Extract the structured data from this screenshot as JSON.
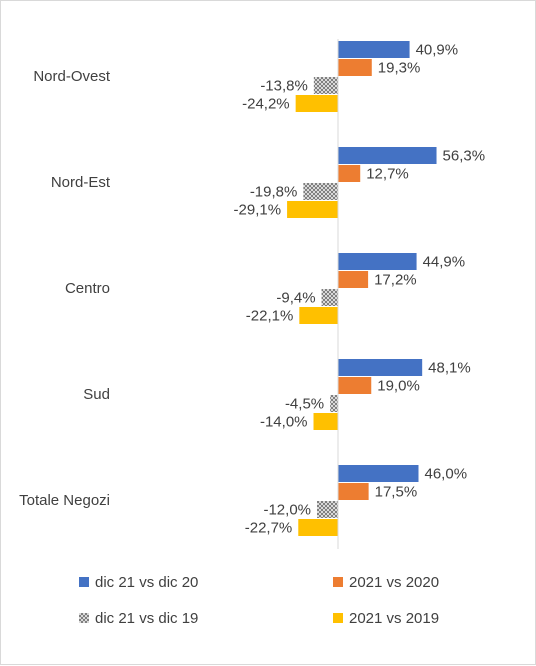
{
  "chart_data": {
    "type": "bar",
    "orientation": "horizontal",
    "title": "",
    "xlabel": "",
    "ylabel": "",
    "categories": [
      "Nord-Ovest",
      "Nord-Est",
      "Centro",
      "Sud",
      "Totale Negozi"
    ],
    "series": [
      {
        "name": "dic 21 vs dic 20",
        "values": [
          40.9,
          56.3,
          44.9,
          48.1,
          46.0
        ],
        "labels": [
          "40,9%",
          "56,3%",
          "44,9%",
          "48,1%",
          "46,0%"
        ],
        "color": "#4472C4",
        "pattern": "solid"
      },
      {
        "name": "2021 vs 2020",
        "values": [
          19.3,
          12.7,
          17.2,
          19.0,
          17.5
        ],
        "labels": [
          "19,3%",
          "12,7%",
          "17,2%",
          "19,0%",
          "17,5%"
        ],
        "color": "#ED7D31",
        "pattern": "solid"
      },
      {
        "name": "dic 21 vs dic 19",
        "values": [
          -13.8,
          -19.8,
          -9.4,
          -4.5,
          -12.0
        ],
        "labels": [
          "-13,8%",
          "-19,8%",
          "-9,4%",
          "-4,5%",
          "-12,0%"
        ],
        "color": "#A5A5A5",
        "pattern": "checker"
      },
      {
        "name": "2021 vs 2019",
        "values": [
          -24.2,
          -29.1,
          -22.1,
          -14.0,
          -22.7
        ],
        "labels": [
          "-24,2%",
          "-29,1%",
          "-22,1%",
          "-14,0%",
          "-22,7%"
        ],
        "color": "#FFC000",
        "pattern": "solid"
      }
    ],
    "grid": false,
    "legend_position": "bottom",
    "axis_color": "#d9d9d9"
  }
}
